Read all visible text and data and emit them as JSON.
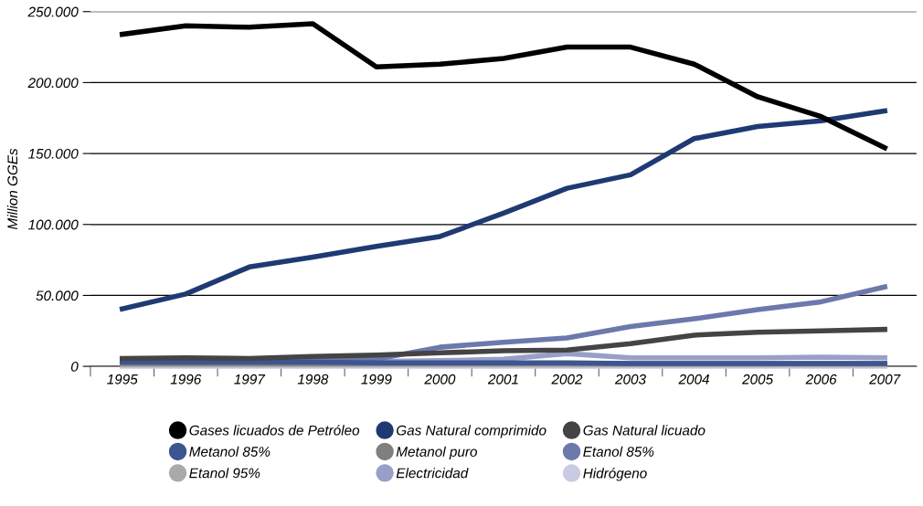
{
  "chart_data": {
    "type": "line",
    "ylabel": "Million GGEs",
    "categories": [
      "1995",
      "1996",
      "1997",
      "1998",
      "1999",
      "2000",
      "2001",
      "2002",
      "2003",
      "2004",
      "2005",
      "2006",
      "2007"
    ],
    "ylim": [
      0,
      250000
    ],
    "yticks": [
      {
        "value": 0,
        "label": "0"
      },
      {
        "value": 50000,
        "label": "50.000"
      },
      {
        "value": 100000,
        "label": "100.000"
      },
      {
        "value": 150000,
        "label": "150.000"
      },
      {
        "value": 200000,
        "label": "200.000"
      },
      {
        "value": 250000,
        "label": "250.000"
      }
    ],
    "grid": "y",
    "legend": "bottom",
    "marker": "none",
    "line_style": "solid",
    "series": [
      {
        "name": "Gases licuados de Petróleo",
        "color": "#000000",
        "values": [
          234000,
          240000,
          239000,
          241500,
          211000,
          213000,
          217000,
          225000,
          225000,
          213000,
          190000,
          176000,
          154000
        ]
      },
      {
        "name": "Gas Natural comprimido",
        "color": "#1f3a73",
        "values": [
          40500,
          51000,
          70000,
          77000,
          84500,
          91500,
          108000,
          125500,
          135000,
          160500,
          169000,
          173000,
          180000
        ]
      },
      {
        "name": "Gas Natural licuado",
        "color": "#444444",
        "values": [
          5500,
          6000,
          5500,
          7000,
          8000,
          9500,
          11000,
          11500,
          16000,
          22000,
          24000,
          25000,
          26000
        ]
      },
      {
        "name": "Metanol 85%",
        "color": "#3d5591",
        "values": [
          3000,
          3000,
          3000,
          3000,
          2500,
          2500,
          2500,
          2500,
          2000,
          2000,
          2000,
          2000,
          2000
        ]
      },
      {
        "name": "Metanol puro",
        "color": "#7f7f7f",
        "values": [
          2000,
          2000,
          2000,
          2000,
          2000,
          2000,
          2000,
          2000,
          2000,
          2000,
          2000,
          2000,
          2000
        ]
      },
      {
        "name": "Etanol 85%",
        "color": "#6b79ab",
        "values": [
          4000,
          4500,
          5000,
          5000,
          5000,
          13500,
          17000,
          20000,
          28000,
          33500,
          40000,
          45500,
          56000
        ]
      },
      {
        "name": "Etanol 95%",
        "color": "#aaaaaa",
        "values": [
          1000,
          1000,
          1000,
          1000,
          1000,
          1000,
          1000,
          1000,
          1000,
          1000,
          1000,
          1000,
          1000
        ]
      },
      {
        "name": "Electricidad",
        "color": "#98a0c8",
        "values": [
          3000,
          3000,
          3000,
          3000,
          3500,
          4000,
          5000,
          9000,
          6000,
          6000,
          6000,
          6500,
          6000
        ]
      },
      {
        "name": "Hidrógeno",
        "color": "#c9cbe2",
        "values": [
          0,
          0,
          0,
          0,
          0,
          0,
          0,
          0,
          0,
          0,
          0,
          0,
          0
        ]
      }
    ]
  }
}
